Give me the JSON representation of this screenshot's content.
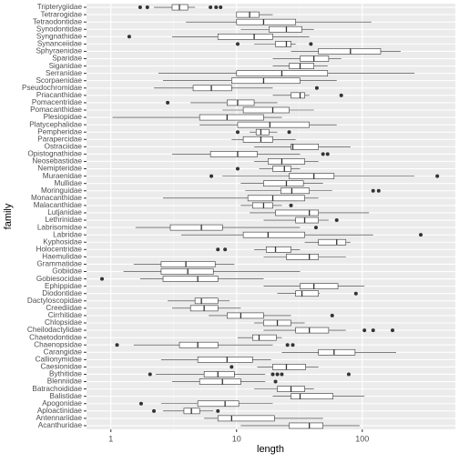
{
  "chart_data": {
    "type": "boxplot",
    "x_label": "length",
    "y_label": "family",
    "xscale": "log",
    "xlim": [
      0.64,
      550
    ],
    "xticks": [
      1,
      10,
      100
    ],
    "grid": true,
    "box_color": "#333333",
    "fill": "#ffffff",
    "categories": [
      "Acanthuridae",
      "Antennariidae",
      "Aploactinidae",
      "Apogonidae",
      "Balistidae",
      "Batrachoididae",
      "Blenniidae",
      "Bythitidae",
      "Caesionidae",
      "Callionymidae",
      "Carangidae",
      "Chaenopsidae",
      "Chaetodontidae",
      "Cheilodactylidae",
      "Chlopsidae",
      "Cirrhitidae",
      "Creediidae",
      "Dactyloscopidae",
      "Diodontidae",
      "Ephippidae",
      "Gobiesocidae",
      "Gobiidae",
      "Grammatidae",
      "Haemulidae",
      "Holocentridae",
      "Kyphosidae",
      "Labridae",
      "Labrisomidae",
      "Lethrinidae",
      "Lutjanidae",
      "Malacanthidae",
      "Monacanthidae",
      "Moringuidae",
      "Mullidae",
      "Muraenidae",
      "Nemipteridae",
      "Neosebastidae",
      "Opistognathidae",
      "Ostraciidae",
      "Parapercidae",
      "Pempheridae",
      "Platycephalidae",
      "Plesiopidae",
      "Pomacanthidae",
      "Pomacentridae",
      "Priacanthidae",
      "Pseudochromidae",
      "Scorpaenidae",
      "Serranidae",
      "Siganidae",
      "Sparidae",
      "Sphyraenidae",
      "Synanceiidae",
      "Syngnathidae",
      "Synodontidae",
      "Tetraodontidae",
      "Tetrarogidae",
      "Tripterygiidae"
    ],
    "boxes": [
      {
        "low": 10.8,
        "q1": 26.2,
        "median": 37.9,
        "q3": 48.7,
        "high": 95.2,
        "outliers": []
      },
      {
        "low": 5.52,
        "q1": 7.1,
        "median": 9.13,
        "q3": 20,
        "high": 48.7,
        "outliers": []
      },
      {
        "low": 2.6,
        "q1": 3.81,
        "median": 4.37,
        "q3": 5.08,
        "high": 6.53,
        "outliers": [
          2.2,
          7.1
        ]
      },
      {
        "low": 2.51,
        "q1": 4.91,
        "median": 8.1,
        "q3": 10.4,
        "high": 19.4,
        "outliers": [
          1.74
        ]
      },
      {
        "low": 19.4,
        "q1": 27.1,
        "median": 32,
        "q3": 58.5,
        "high": 104,
        "outliers": []
      },
      {
        "low": 13.8,
        "q1": 21.1,
        "median": 27.1,
        "q3": 34.8,
        "high": 41.2,
        "outliers": []
      },
      {
        "low": 3.07,
        "q1": 5.08,
        "median": 7.72,
        "q3": 10.8,
        "high": 16.9,
        "outliers": [
          20.4
        ]
      },
      {
        "low": 2.27,
        "q1": 5.52,
        "median": 7.1,
        "q3": 9.6,
        "high": 16.9,
        "outliers": [
          2.05,
          19.4,
          21.1,
          22.9,
          78
        ]
      },
      {
        "low": 14.6,
        "q1": 19.4,
        "median": 24.9,
        "q3": 35.4,
        "high": 44.8,
        "outliers": [
          9.13
        ]
      },
      {
        "low": 2.51,
        "q1": 4.91,
        "median": 8.4,
        "q3": 13.4,
        "high": 18.8,
        "outliers": []
      },
      {
        "low": 22.9,
        "q1": 44.8,
        "median": 59.6,
        "q3": 87.6,
        "high": 186,
        "outliers": []
      },
      {
        "low": 1.52,
        "q1": 3.51,
        "median": 4.91,
        "q3": 7.1,
        "high": 19.4,
        "outliers": [
          1.12,
          25.4,
          28
        ]
      },
      {
        "low": 10.2,
        "q1": 13.4,
        "median": 15.1,
        "q3": 20.7,
        "high": 22.9,
        "outliers": []
      },
      {
        "low": 16.4,
        "q1": 29.5,
        "median": 37.9,
        "q3": 54,
        "high": 74,
        "outliers": [
          104,
          122,
          174
        ]
      },
      {
        "low": 13.8,
        "q1": 16.4,
        "median": 21.1,
        "q3": 27.1,
        "high": 34.8,
        "outliers": []
      },
      {
        "low": 6,
        "q1": 8.4,
        "median": 10.8,
        "q3": 16.4,
        "high": 27.1,
        "outliers": [
          57.6
        ]
      },
      {
        "low": 3.07,
        "q1": 4.3,
        "median": 5.52,
        "q3": 7.1,
        "high": 10.8,
        "outliers": []
      },
      {
        "low": 2.83,
        "q1": 4.67,
        "median": 5.25,
        "q3": 7.1,
        "high": 8.8,
        "outliers": []
      },
      {
        "low": 21.1,
        "q1": 29.5,
        "median": 33.1,
        "q3": 44.8,
        "high": 46,
        "outliers": [
          89
        ]
      },
      {
        "low": 16.4,
        "q1": 32,
        "median": 41.2,
        "q3": 64,
        "high": 104,
        "outliers": []
      },
      {
        "low": 1.71,
        "q1": 2.6,
        "median": 4.91,
        "q3": 7.1,
        "high": 16.4,
        "outliers": [
          0.85
        ]
      },
      {
        "low": 1.26,
        "q1": 2.51,
        "median": 4.09,
        "q3": 6.53,
        "high": 32,
        "outliers": []
      },
      {
        "low": 1.52,
        "q1": 2.51,
        "median": 3.95,
        "q3": 6.75,
        "high": 9.6,
        "outliers": []
      },
      {
        "low": 16.4,
        "q1": 24.9,
        "median": 37.9,
        "q3": 44.8,
        "high": 74,
        "outliers": []
      },
      {
        "low": 13.8,
        "q1": 17.2,
        "median": 20.4,
        "q3": 27.1,
        "high": 32,
        "outliers": [
          7.1,
          8.1
        ]
      },
      {
        "low": 34.8,
        "q1": 44.8,
        "median": 62.6,
        "q3": 74,
        "high": 80.5,
        "outliers": []
      },
      {
        "low": 3.63,
        "q1": 11.3,
        "median": 17.8,
        "q3": 34.8,
        "high": 122,
        "outliers": [
          292
        ]
      },
      {
        "low": 1.57,
        "q1": 2.97,
        "median": 5.25,
        "q3": 7.72,
        "high": 32,
        "outliers": [
          42.8
        ]
      },
      {
        "low": 16.4,
        "q1": 29.5,
        "median": 34.8,
        "q3": 44.8,
        "high": 54,
        "outliers": [
          62.6
        ]
      },
      {
        "low": 12.7,
        "q1": 20.4,
        "median": 37.9,
        "q3": 44.8,
        "high": 113,
        "outliers": []
      },
      {
        "low": 10.8,
        "q1": 13.4,
        "median": 16.4,
        "q3": 19.4,
        "high": 22.9,
        "outliers": [
          27.1
        ]
      },
      {
        "low": 2.6,
        "q1": 12.3,
        "median": 19.4,
        "q3": 34.8,
        "high": 44.8,
        "outliers": []
      },
      {
        "low": 11.7,
        "q1": 22.5,
        "median": 27.5,
        "q3": 37.9,
        "high": 57.6,
        "outliers": [
          122,
          135
        ]
      },
      {
        "low": 10.8,
        "q1": 16.4,
        "median": 24.9,
        "q3": 34,
        "high": 48.7,
        "outliers": []
      },
      {
        "low": 7.72,
        "q1": 26.2,
        "median": 41.2,
        "q3": 59.6,
        "high": 260,
        "outliers": [
          6.3,
          395
        ]
      },
      {
        "low": 15.1,
        "q1": 19.4,
        "median": 24,
        "q3": 27.1,
        "high": 32,
        "outliers": [
          10.2
        ]
      },
      {
        "low": 13.8,
        "q1": 17.8,
        "median": 22.9,
        "q3": 34.8,
        "high": 44.8,
        "outliers": []
      },
      {
        "low": 3.07,
        "q1": 6.2,
        "median": 10.2,
        "q3": 14.6,
        "high": 32,
        "outliers": [
          48.7,
          53
        ]
      },
      {
        "low": 13.8,
        "q1": 27.1,
        "median": 28,
        "q3": 44.8,
        "high": 80.5,
        "outliers": []
      },
      {
        "low": 9.13,
        "q1": 11.3,
        "median": 15.6,
        "q3": 19.4,
        "high": 29.5,
        "outliers": []
      },
      {
        "low": 12.7,
        "q1": 14.3,
        "median": 15.6,
        "q3": 18.1,
        "high": 21.1,
        "outliers": [
          10.2,
          26.2
        ]
      },
      {
        "low": 5.08,
        "q1": 10.2,
        "median": 18.4,
        "q3": 37.9,
        "high": 62.6,
        "outliers": []
      },
      {
        "low": 1.03,
        "q1": 5.08,
        "median": 8.4,
        "q3": 16.4,
        "high": 22.9,
        "outliers": []
      },
      {
        "low": 7.72,
        "q1": 11.3,
        "median": 19.4,
        "q3": 26.2,
        "high": 41.2,
        "outliers": []
      },
      {
        "low": 4.3,
        "q1": 8.4,
        "median": 10.2,
        "q3": 13.8,
        "high": 21.1,
        "outliers": [
          2.83
        ]
      },
      {
        "low": 19.4,
        "q1": 27.1,
        "median": 32,
        "q3": 34.8,
        "high": 37.9,
        "outliers": [
          68
        ]
      },
      {
        "low": 2.2,
        "q1": 4.51,
        "median": 6.3,
        "q3": 9.13,
        "high": 19.4,
        "outliers": [
          43.5
        ]
      },
      {
        "low": 2.6,
        "q1": 9.13,
        "median": 16.4,
        "q3": 32,
        "high": 62.6,
        "outliers": []
      },
      {
        "low": 2.39,
        "q1": 10,
        "median": 22.9,
        "q3": 53,
        "high": 260,
        "outliers": []
      },
      {
        "low": 19.4,
        "q1": 26.2,
        "median": 32,
        "q3": 41.2,
        "high": 53,
        "outliers": []
      },
      {
        "low": 19.4,
        "q1": 32,
        "median": 41.2,
        "q3": 54,
        "high": 68.1,
        "outliers": []
      },
      {
        "low": 27.1,
        "q1": 44.8,
        "median": 80.5,
        "q3": 140,
        "high": 202,
        "outliers": []
      },
      {
        "low": 13.8,
        "q1": 20.4,
        "median": 24.9,
        "q3": 27.1,
        "high": 29.5,
        "outliers": [
          10.2,
          39
        ]
      },
      {
        "low": 3.07,
        "q1": 7.1,
        "median": 13.8,
        "q3": 19.4,
        "high": 37.9,
        "outliers": [
          1.4
        ]
      },
      {
        "low": 10.8,
        "q1": 18.1,
        "median": 24.9,
        "q3": 33.1,
        "high": 41.2,
        "outliers": []
      },
      {
        "low": 3.95,
        "q1": 10,
        "median": 16.4,
        "q3": 29.5,
        "high": 118,
        "outliers": []
      },
      {
        "low": 10,
        "q1": 10,
        "median": 12.7,
        "q3": 15.1,
        "high": 19.4,
        "outliers": []
      },
      {
        "low": 2.2,
        "q1": 3.07,
        "median": 3.51,
        "q3": 4.09,
        "high": 4.67,
        "outliers": [
          1.71,
          1.95,
          6.2,
          6.87,
          7.46
        ]
      }
    ]
  }
}
